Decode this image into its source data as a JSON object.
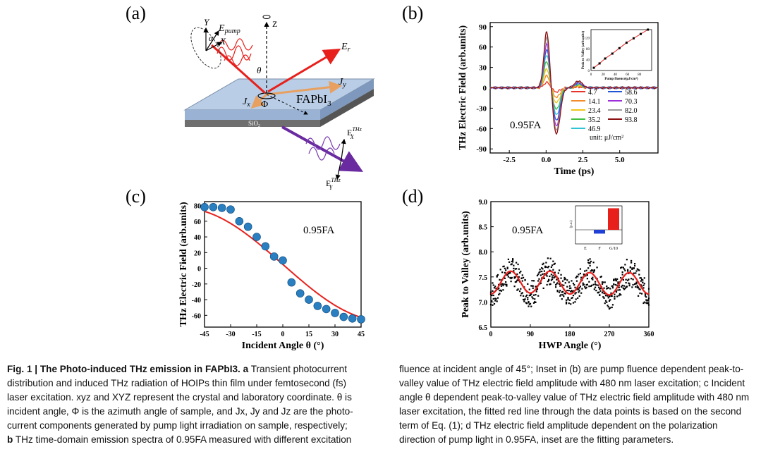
{
  "panels": {
    "a_label": "(a)",
    "b_label": "(b)",
    "c_label": "(c)",
    "d_label": "(d)"
  },
  "panel_a": {
    "labels": {
      "Y": "Y",
      "X": "X",
      "alpha": "α",
      "E_pump": "E",
      "E_pump_sub": "pump",
      "Z": "Z",
      "theta": "θ",
      "Er": "E",
      "Er_sub": "r",
      "Jy": "J",
      "Jy_sub": "y",
      "Jx": "J",
      "Jx_sub": "x",
      "Phi": "Φ",
      "FAPbI3": "FAPbI",
      "FAPbI3_sub": "3",
      "SiO2": "SiO",
      "SiO2_sub": "2",
      "EX": "E",
      "EX_sup": "THz",
      "EX_sub": "X",
      "EY": "E",
      "EY_sup": "THz",
      "EY_sub": "Y"
    }
  },
  "chart_data": [
    {
      "id": "b",
      "type": "line",
      "xlabel": "Time (ps)",
      "ylabel": "THz Electric Field (arb.units)",
      "xlim": [
        -3.8,
        7.6
      ],
      "ylim": [
        -96,
        96
      ],
      "xticks": [
        -2.5,
        0.0,
        2.5,
        5.0
      ],
      "xtick_labels": [
        "-2.5",
        "0.0",
        "2.5",
        "5.0"
      ],
      "yticks": [
        -90,
        -60,
        -30,
        0,
        30,
        60,
        90
      ],
      "ytick_labels": [
        "-90",
        "-60",
        "-30",
        "0",
        "30",
        "60",
        "90"
      ],
      "annotation": "0.95FA",
      "legend_unit": "unit: μJ/cm²",
      "legend_placement": "right",
      "series": [
        {
          "name": "4.7",
          "color": "#e8322a",
          "peak": 8,
          "trough": -6
        },
        {
          "name": "14.1",
          "color": "#f28c28",
          "peak": 18,
          "trough": -14
        },
        {
          "name": "23.4",
          "color": "#f0c419",
          "peak": 28,
          "trough": -22
        },
        {
          "name": "35.2",
          "color": "#3fbf3f",
          "peak": 40,
          "trough": -32
        },
        {
          "name": "46.9",
          "color": "#2ec4d6",
          "peak": 50,
          "trough": -40
        },
        {
          "name": "58.6",
          "color": "#2255d6",
          "peak": 58,
          "trough": -48
        },
        {
          "name": "70.3",
          "color": "#9b30d9",
          "peak": 66,
          "trough": -56
        },
        {
          "name": "82.0",
          "color": "#9a9a9a",
          "peak": 75,
          "trough": -62
        },
        {
          "name": "93.8",
          "color": "#8b1010",
          "peak": 84,
          "trough": -68
        }
      ],
      "inset": {
        "type": "line",
        "xlabel": "Pump fluence(μJ/cm²)",
        "ylabel": "Peak to Valley (arb.units)",
        "xlim": [
          0,
          100
        ],
        "ylim": [
          0,
          150
        ],
        "xticks": [
          0,
          20,
          40,
          60,
          80
        ],
        "yticks": [
          0,
          40,
          80,
          120
        ],
        "x": [
          4.7,
          14.1,
          23.4,
          35.2,
          46.9,
          58.6,
          70.3,
          82.0,
          93.8
        ],
        "y": [
          10,
          26,
          44,
          62,
          82,
          102,
          118,
          134,
          150
        ]
      }
    },
    {
      "id": "c",
      "type": "scatter",
      "xlabel": "Incident Angle θ (°)",
      "ylabel": "THz Electric Field (arb.units)",
      "xlim": [
        -45,
        45
      ],
      "ylim": [
        -75,
        85
      ],
      "xticks": [
        -45,
        -30,
        -15,
        0,
        15,
        30,
        45
      ],
      "yticks": [
        -60,
        -40,
        -20,
        0,
        20,
        40,
        60,
        80
      ],
      "annotation": "0.95FA",
      "x": [
        -45,
        -40,
        -35,
        -30,
        -25,
        -20,
        -15,
        -10,
        -5,
        0,
        5,
        10,
        15,
        20,
        25,
        30,
        35,
        40,
        45
      ],
      "y": [
        78,
        78,
        77,
        75,
        60,
        53,
        40,
        28,
        15,
        10,
        -18,
        -32,
        -40,
        -48,
        -52,
        -57,
        -62,
        -64,
        -65
      ],
      "fit_color": "#e8201c",
      "point_color": "#2a7fc1"
    },
    {
      "id": "d",
      "type": "scatter",
      "xlabel": "HWP Angle (°)",
      "ylabel": "Peak to Valley (arb.units)",
      "xlim": [
        0,
        360
      ],
      "ylim": [
        6.5,
        9.0
      ],
      "xticks": [
        0,
        90,
        180,
        270,
        360
      ],
      "yticks": [
        6.5,
        7.0,
        7.5,
        8.0,
        8.5,
        9.0
      ],
      "ytick_labels": [
        "6.5",
        "7.0",
        "7.5",
        "8.0",
        "8.5",
        "9.0"
      ],
      "annotation": "0.95FA",
      "fit_color": "#e8201c",
      "inset": {
        "type": "bar",
        "categories": [
          "E",
          "F",
          "G/10"
        ],
        "values": [
          0,
          -0.15,
          0.85
        ],
        "ylabel": "(p.u.)",
        "colors": [
          "#1f3fd6",
          "#1f3fd6",
          "#e8201c"
        ]
      }
    }
  ],
  "caption": {
    "fig_label": "Fig. 1 | The Photo-induced THz emission in FAPbI3.",
    "left_lines": [
      {
        "b": "",
        "t": "Transient photocurrent"
      },
      {
        "b": "",
        "t": "distribution and induced THz radiation of HOIPs thin film under femtosecond (fs)"
      },
      {
        "b": "",
        "t": "laser excitation. xyz and XYZ represent the crystal and laboratory coordinate. θ is"
      },
      {
        "b": "",
        "t": "incident angle, Φ is the azimuth angle of sample, and Jx, Jy and Jz are the photo-"
      },
      {
        "b": "",
        "t": "current components generated by pump light irradiation on sample, respectively;"
      },
      {
        "b": "b",
        "t": "THz time-domain emission spectra of 0.95FA measured with different excitation"
      }
    ],
    "right_lines": [
      "fluence at incident angle of 45°; Inset in (b) are pump fluence dependent peak-to-",
      "valley value of THz electric field amplitude with 480 nm laser excitation; c Incident",
      "angle θ dependent peak-to-valley value of THz electric field amplitude with 480 nm",
      "laser excitation, the fitted red line through the data points is based on the second",
      "term of Eq. (1); d THz electric field amplitude dependent on the polarization",
      "direction of pump light in 0.95FA, inset are the fitting parameters."
    ],
    "a_bold": "a"
  }
}
